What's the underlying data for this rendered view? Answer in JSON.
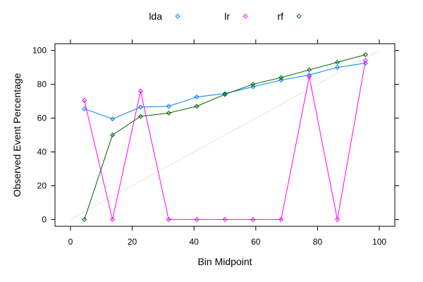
{
  "chart_data": {
    "type": "line",
    "title": "",
    "xlabel": "Bin Midpoint",
    "ylabel": "Observed Event Percentage",
    "xlim": [
      -5,
      105
    ],
    "ylim": [
      -4,
      104
    ],
    "xticks": [
      0,
      20,
      40,
      60,
      80,
      100
    ],
    "yticks": [
      0,
      20,
      40,
      60,
      80,
      100
    ],
    "grid": false,
    "legend_position": "top",
    "reference_line": {
      "from": [
        0,
        0
      ],
      "to": [
        100,
        100
      ],
      "color": "#e6e6e6"
    },
    "x": [
      4.5,
      13.6,
      22.7,
      31.8,
      40.9,
      50,
      59.1,
      68.2,
      77.3,
      86.4,
      95.5
    ],
    "series": [
      {
        "name": "lda",
        "color": "#0080ff",
        "values": [
          65.5,
          59.5,
          66.5,
          67,
          72.5,
          74.5,
          78.5,
          82.5,
          85.5,
          90,
          92.5
        ]
      },
      {
        "name": "lr",
        "color": "#ff00ff",
        "values": [
          70.5,
          0,
          76,
          0,
          0,
          0,
          0,
          0,
          84.5,
          0,
          94
        ]
      },
      {
        "name": "rf",
        "color": "#006400",
        "values": [
          0,
          50,
          61,
          63,
          67,
          74,
          80,
          84,
          88.5,
          93,
          97.5
        ]
      }
    ]
  }
}
